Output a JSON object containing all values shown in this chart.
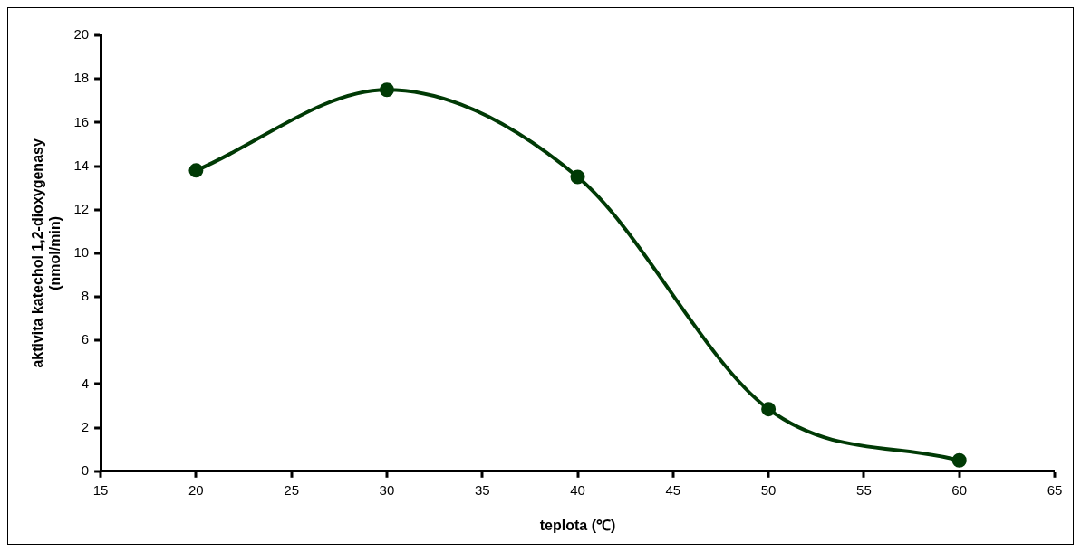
{
  "chart_data": {
    "type": "line",
    "xlabel": "teplota (℃)",
    "ylabel": "aktivita katechol 1,2-dioxygenasy\n(nmol/min)",
    "x": [
      20,
      30,
      40,
      50,
      60
    ],
    "series": [
      {
        "color": "#003a05",
        "values": [
          13.8,
          17.5,
          13.5,
          2.85,
          0.5
        ]
      }
    ],
    "xlim": [
      15,
      65
    ],
    "xticks": [
      15,
      20,
      25,
      30,
      35,
      40,
      45,
      50,
      55,
      60,
      65
    ],
    "ylim": [
      0,
      20
    ],
    "yticks": [
      0,
      2,
      4,
      6,
      8,
      10,
      12,
      14,
      16,
      18,
      20
    ],
    "grid": false,
    "legend": false,
    "marker": "circle",
    "line_style": "solid"
  }
}
